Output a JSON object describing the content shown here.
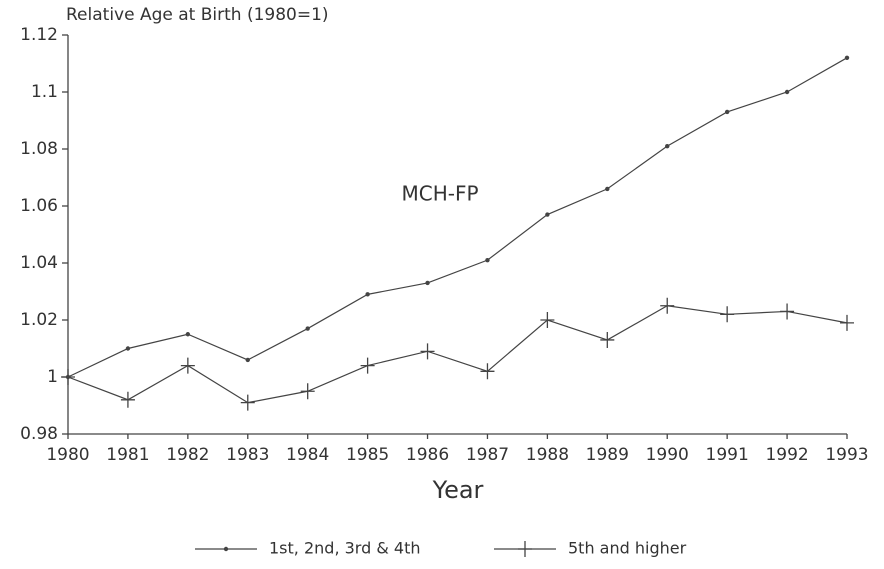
{
  "chart_data": {
    "type": "line",
    "title": "Relative Age at Birth (1980=1)",
    "x_label": "Year",
    "annotation": "MCH-FP",
    "x": [
      1980,
      1981,
      1982,
      1983,
      1984,
      1985,
      1986,
      1987,
      1988,
      1989,
      1990,
      1991,
      1992,
      1993
    ],
    "xlim": [
      1980,
      1993
    ],
    "xticks": [
      1980,
      1981,
      1982,
      1983,
      1984,
      1985,
      1986,
      1987,
      1988,
      1989,
      1990,
      1991,
      1992,
      1993
    ],
    "ylim": [
      0.98,
      1.12
    ],
    "yticks": [
      0.98,
      1,
      1.02,
      1.04,
      1.06,
      1.08,
      1.1,
      1.12
    ],
    "legend": "bottom",
    "series": [
      {
        "name": "1st, 2nd, 3rd & 4th",
        "color": "#444444",
        "marker": "dot",
        "values": [
          1.0,
          1.01,
          1.015,
          1.006,
          1.017,
          1.029,
          1.033,
          1.041,
          1.057,
          1.066,
          1.081,
          1.093,
          1.1,
          1.112
        ]
      },
      {
        "name": "5th and higher",
        "color": "#444444",
        "marker": "plus",
        "values": [
          1.0,
          0.992,
          1.004,
          0.991,
          0.995,
          1.004,
          1.009,
          1.002,
          1.02,
          1.013,
          1.025,
          1.022,
          1.023,
          1.019
        ]
      }
    ]
  }
}
